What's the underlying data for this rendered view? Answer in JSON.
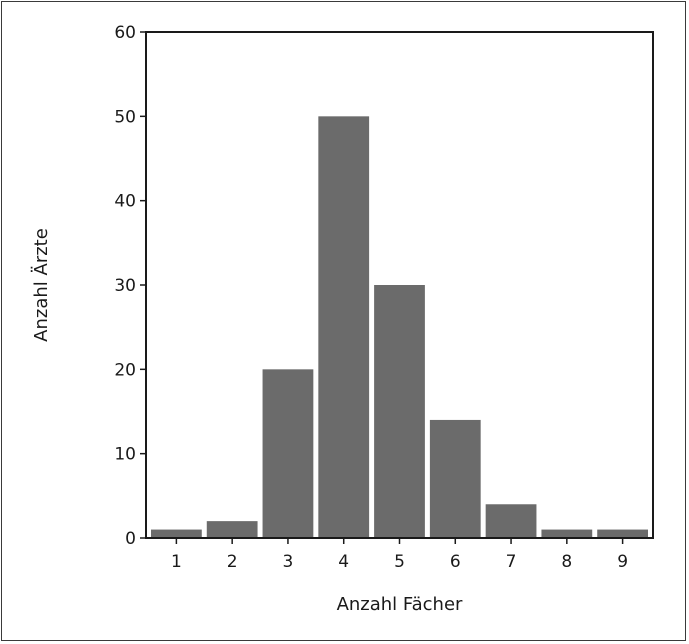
{
  "chart_data": {
    "type": "bar",
    "categories": [
      "1",
      "2",
      "3",
      "4",
      "5",
      "6",
      "7",
      "8",
      "9"
    ],
    "values": [
      1,
      2,
      20,
      50,
      30,
      14,
      4,
      1,
      1
    ],
    "title": "",
    "xlabel": "Anzahl Fächer",
    "ylabel": "Anzahl Ärzte",
    "ylim": [
      0,
      60
    ],
    "yticks": [
      "0",
      "10",
      "20",
      "30",
      "40",
      "50",
      "60"
    ],
    "grid": false,
    "bar_color": "#6b6b6b",
    "axis_color": "#1a1a1a"
  }
}
